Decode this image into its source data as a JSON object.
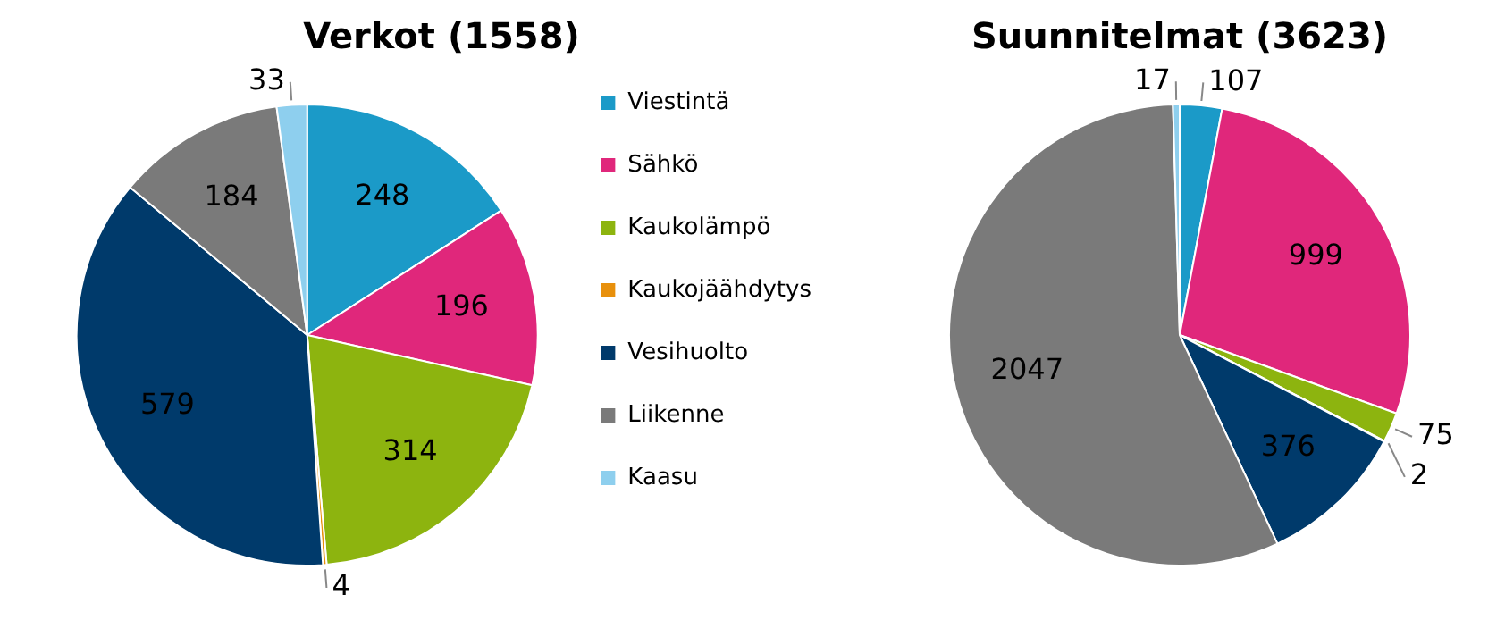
{
  "chart_data": [
    {
      "type": "pie",
      "title": "Verkot (1558)",
      "categories": [
        "Viestintä",
        "Sähkö",
        "Kaukolämpö",
        "Kaukojäähdytys",
        "Vesihuolto",
        "Liikenne",
        "Kaasu"
      ],
      "values": [
        248,
        196,
        314,
        4,
        579,
        184,
        33
      ],
      "colors": [
        "#1b9ac8",
        "#e0277b",
        "#8db40f",
        "#e8900c",
        "#003a6b",
        "#7a7a7a",
        "#8ecfee"
      ],
      "data_labels": true,
      "legend": "right"
    },
    {
      "type": "pie",
      "title": "Suunnitelmat (3623)",
      "categories": [
        null,
        null,
        null,
        null,
        null,
        null,
        null
      ],
      "values": [
        107,
        999,
        75,
        2,
        376,
        2047,
        17
      ],
      "colors": [
        "#1b9ac8",
        "#e0277b",
        "#8db40f",
        "#e8900c",
        "#003a6b",
        "#7a7a7a",
        "#8ecfee"
      ],
      "data_labels": true,
      "legend": false
    }
  ]
}
